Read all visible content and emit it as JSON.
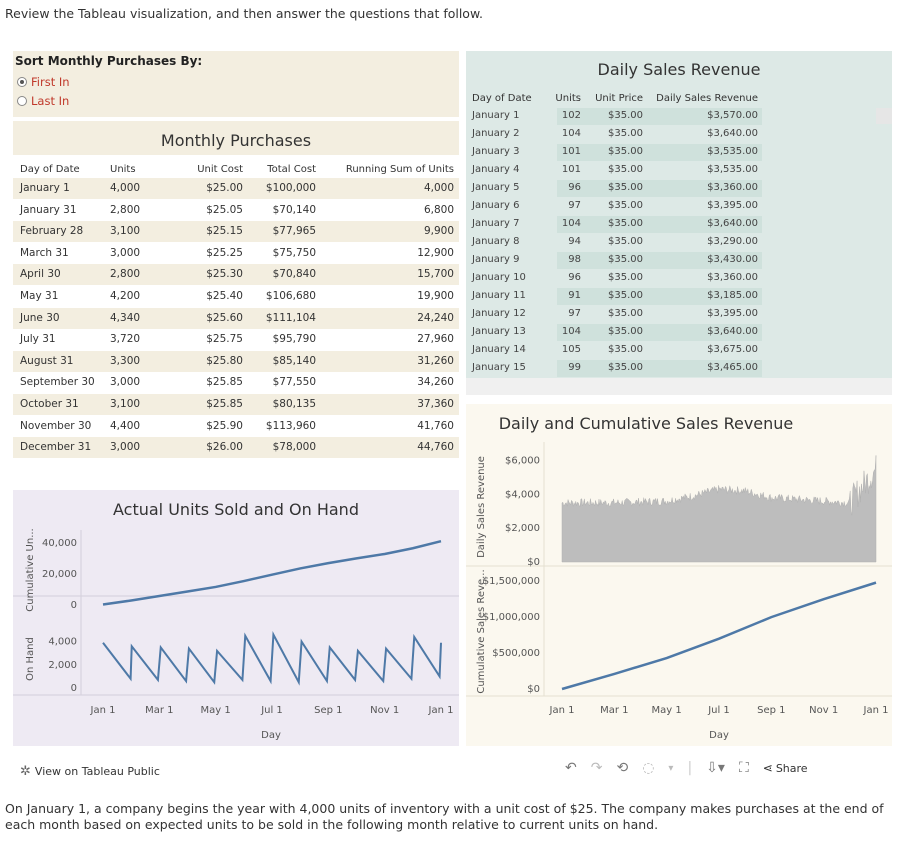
{
  "intro": "Review the Tableau visualization, and then answer the questions that follow.",
  "sort": {
    "title": "Sort Monthly Purchases By:",
    "options": [
      {
        "label": "First In",
        "selected": true
      },
      {
        "label": "Last In",
        "selected": false
      }
    ]
  },
  "monthly_purchases": {
    "title": "Monthly Purchases",
    "headers": [
      "Day of Date",
      "Units",
      "Unit Cost",
      "Total Cost",
      "Running Sum of Units"
    ],
    "rows": [
      [
        "January 1",
        "4,000",
        "$25.00",
        "$100,000",
        "4,000"
      ],
      [
        "January 31",
        "2,800",
        "$25.05",
        "$70,140",
        "6,800"
      ],
      [
        "February 28",
        "3,100",
        "$25.15",
        "$77,965",
        "9,900"
      ],
      [
        "March 31",
        "3,000",
        "$25.25",
        "$75,750",
        "12,900"
      ],
      [
        "April 30",
        "2,800",
        "$25.30",
        "$70,840",
        "15,700"
      ],
      [
        "May 31",
        "4,200",
        "$25.40",
        "$106,680",
        "19,900"
      ],
      [
        "June 30",
        "4,340",
        "$25.60",
        "$111,104",
        "24,240"
      ],
      [
        "July 31",
        "3,720",
        "$25.75",
        "$95,790",
        "27,960"
      ],
      [
        "August 31",
        "3,300",
        "$25.80",
        "$85,140",
        "31,260"
      ],
      [
        "September 30",
        "3,000",
        "$25.85",
        "$77,550",
        "34,260"
      ],
      [
        "October 31",
        "3,100",
        "$25.85",
        "$80,135",
        "37,360"
      ],
      [
        "November 30",
        "4,400",
        "$25.90",
        "$113,960",
        "41,760"
      ],
      [
        "December 31",
        "3,000",
        "$26.00",
        "$78,000",
        "44,760"
      ]
    ]
  },
  "daily_sales": {
    "title": "Daily Sales Revenue",
    "headers": [
      "Day of Date",
      "Units",
      "Unit Price",
      "Daily Sales Revenue"
    ],
    "rows": [
      [
        "January 1",
        "102",
        "$35.00",
        "$3,570.00"
      ],
      [
        "January 2",
        "104",
        "$35.00",
        "$3,640.00"
      ],
      [
        "January 3",
        "101",
        "$35.00",
        "$3,535.00"
      ],
      [
        "January 4",
        "101",
        "$35.00",
        "$3,535.00"
      ],
      [
        "January 5",
        "96",
        "$35.00",
        "$3,360.00"
      ],
      [
        "January 6",
        "97",
        "$35.00",
        "$3,395.00"
      ],
      [
        "January 7",
        "104",
        "$35.00",
        "$3,640.00"
      ],
      [
        "January 8",
        "94",
        "$35.00",
        "$3,290.00"
      ],
      [
        "January 9",
        "98",
        "$35.00",
        "$3,430.00"
      ],
      [
        "January 10",
        "96",
        "$35.00",
        "$3,360.00"
      ],
      [
        "January 11",
        "91",
        "$35.00",
        "$3,185.00"
      ],
      [
        "January 12",
        "97",
        "$35.00",
        "$3,395.00"
      ],
      [
        "January 13",
        "104",
        "$35.00",
        "$3,640.00"
      ],
      [
        "January 14",
        "105",
        "$35.00",
        "$3,675.00"
      ],
      [
        "January 15",
        "99",
        "$35.00",
        "$3,465.00"
      ]
    ]
  },
  "chart_data": [
    {
      "type": "line",
      "title": "Actual Units Sold and On Hand",
      "xlabel": "Day",
      "x_ticks": [
        "Jan 1",
        "Mar 1",
        "May 1",
        "Jul 1",
        "Sep 1",
        "Nov 1",
        "Jan 1"
      ],
      "panels": [
        {
          "ylabel": "Cumulative Un...",
          "y_ticks": [
            "0",
            "20,000",
            "40,000"
          ],
          "ylim": [
            0,
            45000
          ],
          "series": [
            {
              "values_x_month": [
                0,
                1,
                2,
                3,
                4,
                5,
                6,
                7,
                8,
                9,
                10,
                11,
                12
              ],
              "values": [
                300,
                2900,
                5800,
                8700,
                11600,
                15400,
                19500,
                23500,
                26900,
                30000,
                32800,
                36500,
                41000
              ]
            }
          ]
        },
        {
          "ylabel": "On Hand",
          "y_ticks": [
            "0",
            "2,000",
            "4,000"
          ],
          "ylim": [
            0,
            5000
          ],
          "series": [
            {
              "values_x_month": [
                0,
                0.98,
                1.02,
                1.95,
                2.05,
                2.95,
                3.05,
                3.95,
                4.05,
                4.95,
                5.05,
                5.95,
                6.05,
                6.95,
                7.05,
                7.95,
                8.05,
                8.95,
                9.05,
                9.95,
                10.05,
                10.95,
                11.05,
                11.95,
                12
              ],
              "values": [
                3900,
                800,
                3600,
                700,
                3500,
                600,
                3400,
                500,
                3200,
                700,
                4500,
                600,
                4600,
                500,
                4000,
                600,
                3500,
                700,
                3200,
                600,
                3400,
                800,
                4400,
                1000,
                3900
              ]
            }
          ]
        }
      ]
    },
    {
      "type": "area",
      "title": "Daily and Cumulative Sales Revenue",
      "xlabel": "Day",
      "x_ticks": [
        "Jan 1",
        "Mar 1",
        "May 1",
        "Jul 1",
        "Sep 1",
        "Nov 1",
        "Jan 1"
      ],
      "panels": [
        {
          "ylabel": "Daily Sales Revenue",
          "y_ticks": [
            "$0",
            "$2,000",
            "$4,000",
            "$6,000"
          ],
          "ylim": [
            0,
            6500
          ],
          "series": [
            {
              "profile_x_month": [
                0,
                2,
                4,
                5,
                6,
                7,
                8,
                9,
                10,
                11,
                11.5,
                12
              ],
              "values": [
                3500,
                3500,
                3600,
                3900,
                4300,
                4200,
                3800,
                3700,
                3600,
                3500,
                4500,
                5500
              ]
            }
          ]
        },
        {
          "ylabel": "Cumulative Sales Reve...",
          "y_ticks": [
            "$0",
            "$500,000",
            "$1,000,000",
            "$1,500,000"
          ],
          "ylim": [
            0,
            1600000
          ],
          "series": [
            {
              "values_x_month": [
                0,
                2,
                4,
                6,
                8,
                10,
                12
              ],
              "values": [
                0,
                210000,
                430000,
                700000,
                1000000,
                1250000,
                1480000
              ]
            }
          ]
        }
      ]
    }
  ],
  "toolbar": {
    "view_label": "View on Tableau Public",
    "share_label": "Share"
  },
  "footer": "On January 1, a company begins the year with 4,000 units of inventory with a unit cost of $25. The company makes purchases at the end of each month based on expected units to be sold in the following month relative to current units on hand."
}
